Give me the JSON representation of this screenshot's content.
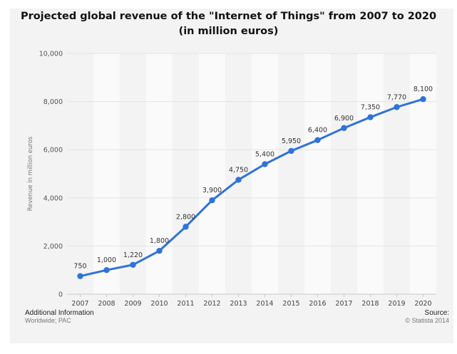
{
  "chart_data": {
    "type": "line",
    "title_line1": "Projected global revenue of the \"Internet of Things\" from 2007 to 2020",
    "title_line2": "(in million euros)",
    "ylabel": "Revenue in million euros",
    "xlabel": "",
    "categories": [
      "2007",
      "2008",
      "2009",
      "2010",
      "2011",
      "2012",
      "2013",
      "2014",
      "2015",
      "2016",
      "2017",
      "2018",
      "2019",
      "2020"
    ],
    "values": [
      750,
      1000,
      1220,
      1800,
      2800,
      3900,
      4750,
      5400,
      5950,
      6400,
      6900,
      7350,
      7770,
      8100
    ],
    "value_labels": [
      "750",
      "1,000",
      "1,220",
      "1,800",
      "2,800",
      "3,900",
      "4,750",
      "5,400",
      "5,950",
      "6,400",
      "6,900",
      "7,350",
      "7,770",
      "8,100"
    ],
    "ylim": [
      0,
      10000
    ],
    "yticks": [
      0,
      2000,
      4000,
      6000,
      8000,
      10000
    ],
    "ytick_labels": [
      "0",
      "2,000",
      "4,000",
      "6,000",
      "8,000",
      "10,000"
    ],
    "grid": true,
    "colors": {
      "line": "#2f73d8",
      "grid": "#e3e3e3",
      "band": "#fafafa"
    }
  },
  "footer": {
    "additional_info": "Additional Information",
    "region": "Worldwide; PAC",
    "source_label": "Source:",
    "source_value": "© Statista 2014"
  }
}
